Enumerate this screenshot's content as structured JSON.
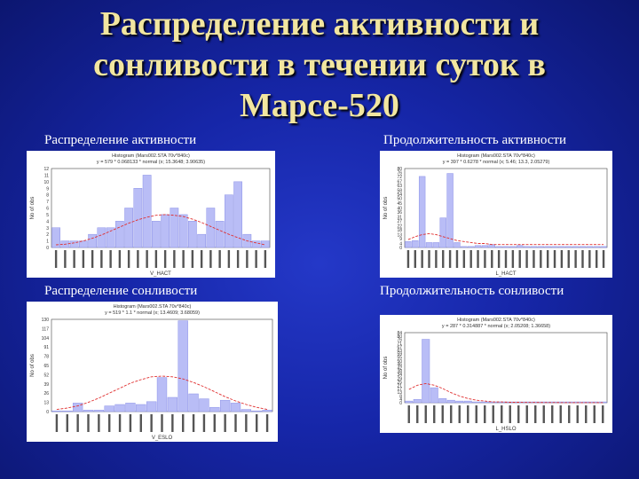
{
  "title_lines": [
    "Распределение активности и",
    "сонливости в течении суток в",
    "Марсе-520"
  ],
  "captions": {
    "activity_distribution": "Распределение активности",
    "activity_duration": "Продолжительность  активности",
    "sleepiness_distribution": "Распределение сонливости",
    "sleepiness_duration": "Продолжительность  сонливости"
  },
  "chart_data": [
    {
      "type": "bar",
      "header": [
        "Histogram (Mars002.STA 70v*840c)",
        "y = 579 * 0.068133 * normal (x; 15.3648; 3.90635)"
      ],
      "ylabel": "No of obs",
      "xlabel": "V_HACT",
      "yticks": [
        "0",
        "1",
        "2",
        "3",
        "4",
        "5",
        "6",
        "7",
        "8",
        "9",
        "10",
        "11",
        "12"
      ],
      "bar_color": "#b9bdf6",
      "curve_color": "#e03030",
      "values": [
        3,
        1,
        1,
        1,
        2,
        3,
        3,
        4,
        6,
        9,
        11,
        4,
        5,
        6,
        5,
        4,
        2,
        6,
        4,
        8,
        10,
        2,
        1,
        1
      ],
      "curve": [
        0.4,
        0.5,
        0.7,
        1.0,
        1.4,
        1.9,
        2.5,
        3.1,
        3.7,
        4.2,
        4.6,
        4.9,
        5.0,
        4.9,
        4.7,
        4.3,
        3.8,
        3.2,
        2.6,
        2.0,
        1.5,
        1.0,
        0.7,
        0.4
      ],
      "ymax": 12
    },
    {
      "type": "bar",
      "header": [
        "Histogram (Mars002.STA 70v*840c)",
        "y = 397 * 0.6278 * normal (x; 5.46; 13.3, 2.05279)"
      ],
      "ylabel": "No of obs",
      "xlabel": "L_HACT",
      "yticks": [
        "0",
        "4",
        "9",
        "13",
        "18",
        "22",
        "27",
        "31",
        "36",
        "40",
        "45",
        "50",
        "54",
        "58",
        "63",
        "67",
        "72",
        "76",
        "80"
      ],
      "bar_color": "#b9bdf6",
      "curve_color": "#e03030",
      "values": [
        6,
        7,
        72,
        5,
        5,
        30,
        75,
        5,
        1,
        1,
        2,
        2,
        3,
        1,
        1,
        1,
        2,
        1,
        1,
        1,
        1,
        1,
        1,
        1,
        1,
        1,
        1,
        1,
        1
      ],
      "curve": [
        8,
        11,
        13,
        14,
        13,
        11,
        9,
        7,
        6,
        5,
        4,
        4,
        3,
        3,
        3,
        3,
        3,
        3,
        3,
        3,
        3,
        3,
        3,
        3,
        3,
        3,
        3,
        3,
        3
      ],
      "ymax": 80
    },
    {
      "type": "bar",
      "header": [
        "Histogram (Mars002.STA 70v*840c)",
        "y = 519 * 1.1 * normal (x; 13.4609; 3.68059)"
      ],
      "ylabel": "No of obs",
      "xlabel": "V_ESLO",
      "yticks": [
        "0",
        "13",
        "26",
        "39",
        "52",
        "65",
        "78",
        "91",
        "104",
        "117",
        "130"
      ],
      "bar_color": "#b9bdf6",
      "curve_color": "#e03030",
      "values": [
        1,
        1,
        12,
        2,
        2,
        8,
        10,
        12,
        10,
        14,
        48,
        20,
        128,
        25,
        18,
        6,
        16,
        12,
        3,
        1,
        2
      ],
      "curve": [
        3,
        5,
        8,
        13,
        19,
        26,
        33,
        40,
        45,
        49,
        50,
        49,
        46,
        41,
        35,
        28,
        21,
        15,
        10,
        6,
        3
      ],
      "ymax": 130
    },
    {
      "type": "bar",
      "header": [
        "Histogram (Mars002.STA 70v*840c)",
        "y = 287 * 0.314887 * normal (x; 2.05208; 1.36658)"
      ],
      "ylabel": "No of obs",
      "xlabel": "L_HSLO",
      "yticks": [
        "0",
        "4",
        "8",
        "13",
        "17",
        "21",
        "25",
        "29",
        "34",
        "38",
        "42",
        "46",
        "50",
        "55",
        "59",
        "63",
        "67",
        "71",
        "76",
        "80",
        "84"
      ],
      "bar_color": "#b9bdf6",
      "curve_color": "#e03030",
      "values": [
        2,
        4,
        76,
        18,
        5,
        3,
        2,
        2,
        1,
        1,
        1,
        1,
        1,
        1,
        1,
        1,
        1,
        1,
        1,
        1,
        1,
        1,
        1,
        1
      ],
      "curve": [
        16,
        21,
        23,
        21,
        17,
        12,
        8,
        5,
        3,
        2,
        1,
        1,
        0.5,
        0.5,
        0.3,
        0.3,
        0.2,
        0.2,
        0.1,
        0.1,
        0.1,
        0.1,
        0.1,
        0.1
      ],
      "ymax": 84
    }
  ]
}
